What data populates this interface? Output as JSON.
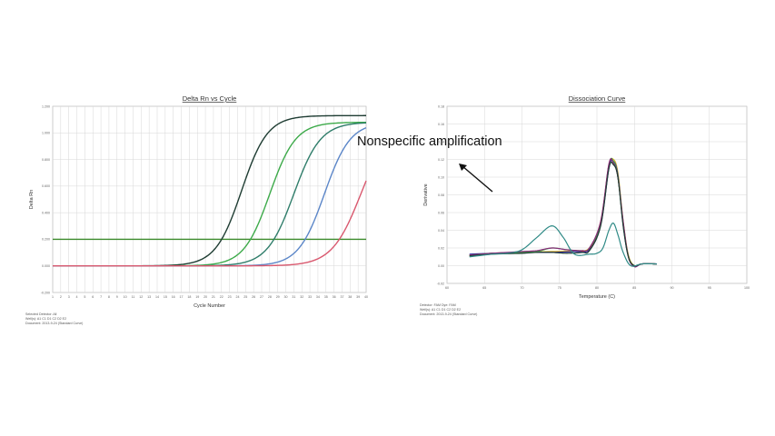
{
  "annotation": {
    "text": "Nonspecific amplification"
  },
  "colors": {
    "threshold": "#3a8a2a",
    "grid": "#d7d7d7",
    "frame": "#9a9a9a",
    "series": [
      "#1f3d33",
      "#3daa4a",
      "#2f7d6a",
      "#5b86c8",
      "#d9586e",
      "#d8b52a",
      "#d8402a",
      "#2a2aa0",
      "#8a2a7a",
      "#2f8a86"
    ]
  },
  "chart_data": [
    {
      "type": "line",
      "title": "Delta Rn vs Cycle",
      "xlabel": "Cycle Number",
      "ylabel": "Delta Rn",
      "xlim": [
        1,
        40
      ],
      "ylim": [
        -0.2,
        1.2
      ],
      "x_ticks": [
        1,
        2,
        3,
        4,
        5,
        6,
        7,
        8,
        9,
        10,
        11,
        12,
        13,
        14,
        15,
        16,
        17,
        18,
        19,
        20,
        21,
        22,
        23,
        24,
        25,
        26,
        27,
        28,
        29,
        30,
        31,
        32,
        33,
        34,
        35,
        36,
        37,
        38,
        39,
        40
      ],
      "y_ticks": [
        -0.2,
        0.0,
        0.2,
        0.4,
        0.6,
        0.8,
        1.0,
        1.2
      ],
      "y_tick_labels": [
        "-0.200",
        "0.000",
        "0.200",
        "0.400",
        "0.600",
        "0.800",
        "1.000",
        "1.200"
      ],
      "grid": true,
      "threshold": 0.2,
      "series": [
        {
          "midpoint": 24.5,
          "plateau": 1.13,
          "baseline": 0.0,
          "steepness": 0.62
        },
        {
          "midpoint": 28.0,
          "plateau": 1.08,
          "baseline": 0.0,
          "steepness": 0.62
        },
        {
          "midpoint": 31.0,
          "plateau": 1.08,
          "baseline": 0.0,
          "steepness": 0.6
        },
        {
          "midpoint": 34.8,
          "plateau": 1.08,
          "baseline": 0.0,
          "steepness": 0.62
        },
        {
          "midpoint": 39.4,
          "plateau": 1.1,
          "baseline": 0.0,
          "steepness": 0.55
        }
      ],
      "footnotes": [
        "Selected Detector: All",
        "Well(s): A1 C1 D1 C2 D2 E2",
        "Document: 2013-9-24 (Standard Curve)"
      ]
    },
    {
      "type": "line",
      "title": "Dissociation Curve",
      "xlabel": "Temperature (C)",
      "ylabel": "Derivative",
      "xlim": [
        60,
        100
      ],
      "ylim": [
        -0.02,
        0.18
      ],
      "x_ticks": [
        60,
        65,
        70,
        75,
        80,
        85,
        90,
        95,
        100
      ],
      "y_ticks": [
        -0.02,
        0.0,
        0.02,
        0.04,
        0.06,
        0.08,
        0.1,
        0.12,
        0.14,
        0.16,
        0.18
      ],
      "y_tick_labels": [
        "-0.02",
        "0.00",
        "0.02",
        "0.04",
        "0.06",
        "0.08",
        "0.10",
        "0.12",
        "0.14",
        "0.16",
        "0.18"
      ],
      "grid": true,
      "series": [
        {
          "points": [
            [
              63,
              0.012
            ],
            [
              66,
              0.014
            ],
            [
              70,
              0.015
            ],
            [
              74,
              0.016
            ],
            [
              77,
              0.017
            ],
            [
              79,
              0.02
            ],
            [
              80.5,
              0.05
            ],
            [
              81.6,
              0.112
            ],
            [
              82.2,
              0.12
            ],
            [
              82.8,
              0.105
            ],
            [
              83.5,
              0.05
            ],
            [
              84.2,
              0.012
            ],
            [
              85,
              0.0
            ],
            [
              86,
              0.002
            ],
            [
              88,
              0.002
            ]
          ]
        },
        {
          "points": [
            [
              63,
              0.011
            ],
            [
              66,
              0.014
            ],
            [
              70,
              0.015
            ],
            [
              74,
              0.015
            ],
            [
              77,
              0.016
            ],
            [
              79,
              0.019
            ],
            [
              80.5,
              0.048
            ],
            [
              81.6,
              0.114
            ],
            [
              82.2,
              0.116
            ],
            [
              82.8,
              0.1
            ],
            [
              83.5,
              0.048
            ],
            [
              84.2,
              0.01
            ],
            [
              85,
              0.0
            ],
            [
              86,
              0.002
            ],
            [
              88,
              0.002
            ]
          ]
        },
        {
          "points": [
            [
              63,
              0.013
            ],
            [
              66,
              0.014
            ],
            [
              70,
              0.015
            ],
            [
              74,
              0.015
            ],
            [
              77,
              0.016
            ],
            [
              79,
              0.018
            ],
            [
              80.5,
              0.046
            ],
            [
              81.6,
              0.11
            ],
            [
              82.2,
              0.118
            ],
            [
              82.8,
              0.102
            ],
            [
              83.5,
              0.046
            ],
            [
              84.2,
              0.01
            ],
            [
              85,
              -0.001
            ],
            [
              86,
              0.002
            ],
            [
              88,
              0.002
            ]
          ]
        },
        {
          "points": [
            [
              63,
              0.012
            ],
            [
              66,
              0.014
            ],
            [
              70,
              0.015
            ],
            [
              72,
              0.016
            ],
            [
              74,
              0.02
            ],
            [
              76,
              0.018
            ],
            [
              78,
              0.017
            ],
            [
              79,
              0.02
            ],
            [
              80.5,
              0.048
            ],
            [
              81.6,
              0.114
            ],
            [
              82.2,
              0.118
            ],
            [
              82.8,
              0.1
            ],
            [
              83.5,
              0.048
            ],
            [
              84.2,
              0.01
            ],
            [
              85,
              0.0
            ],
            [
              86,
              0.002
            ],
            [
              88,
              0.002
            ]
          ]
        },
        {
          "points": [
            [
              63,
              0.012
            ],
            [
              66,
              0.014
            ],
            [
              70,
              0.016
            ],
            [
              72,
              0.017
            ],
            [
              74,
              0.02
            ],
            [
              76,
              0.018
            ],
            [
              78,
              0.017
            ],
            [
              79,
              0.02
            ],
            [
              80.5,
              0.05
            ],
            [
              81.6,
              0.115
            ],
            [
              82.2,
              0.116
            ],
            [
              82.8,
              0.1
            ],
            [
              83.5,
              0.05
            ],
            [
              84.2,
              0.01
            ],
            [
              85,
              -0.001
            ],
            [
              86,
              0.002
            ],
            [
              88,
              0.002
            ]
          ]
        },
        {
          "points": [
            [
              63,
              0.011
            ],
            [
              66,
              0.013
            ],
            [
              70,
              0.014
            ],
            [
              72,
              0.015
            ],
            [
              74,
              0.015
            ],
            [
              76,
              0.014
            ],
            [
              78,
              0.015
            ],
            [
              79,
              0.017
            ],
            [
              80.5,
              0.045
            ],
            [
              81.6,
              0.11
            ],
            [
              82.2,
              0.114
            ],
            [
              82.8,
              0.1
            ],
            [
              83.5,
              0.045
            ],
            [
              84.2,
              0.01
            ],
            [
              85,
              0.0
            ],
            [
              86,
              0.002
            ],
            [
              88,
              0.002
            ]
          ]
        },
        {
          "points": [
            [
              63,
              0.01
            ],
            [
              66,
              0.013
            ],
            [
              68,
              0.014
            ],
            [
              70,
              0.018
            ],
            [
              72,
              0.032
            ],
            [
              74,
              0.045
            ],
            [
              75.5,
              0.032
            ],
            [
              77,
              0.013
            ],
            [
              79,
              0.013
            ],
            [
              80,
              0.014
            ],
            [
              80.8,
              0.02
            ],
            [
              81.6,
              0.04
            ],
            [
              82.2,
              0.048
            ],
            [
              82.8,
              0.035
            ],
            [
              83.5,
              0.015
            ],
            [
              84.5,
              0.0
            ],
            [
              86,
              0.002
            ],
            [
              88,
              0.002
            ]
          ]
        }
      ],
      "footnotes": [
        "Detector: FAM   Dye: FAM",
        "Well(s): A1 C1 D1 C2 D2 E2",
        "Document: 2013-9-24 (Standard Curve)"
      ]
    }
  ]
}
